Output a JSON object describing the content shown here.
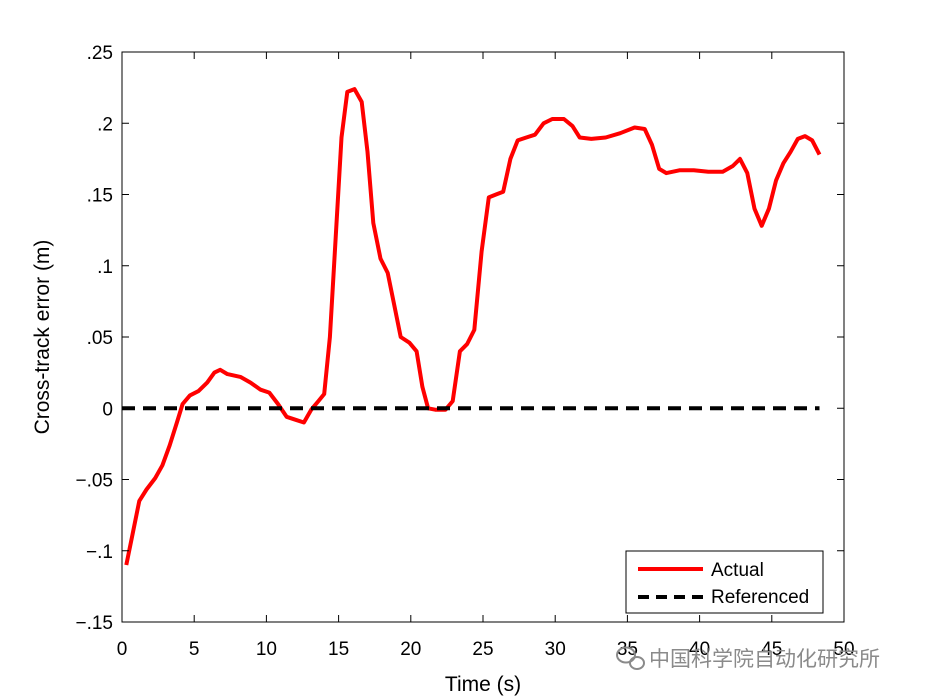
{
  "chart_data": {
    "type": "line",
    "xlabel": "Time (s)",
    "ylabel": "Cross-track error (m)",
    "xlim": [
      0,
      50
    ],
    "ylim": [
      -0.15,
      0.25
    ],
    "xticks": [
      0,
      5,
      10,
      15,
      20,
      25,
      30,
      35,
      40,
      45,
      50
    ],
    "yticks": [
      -0.15,
      -0.1,
      -0.05,
      0,
      0.05,
      0.1,
      0.15,
      0.2,
      0.25
    ],
    "grid": false,
    "legend_position": "bottom-right",
    "series": [
      {
        "name": "Actual",
        "color": "#ff0000",
        "style": "solid",
        "points": [
          [
            0.3,
            -0.11
          ],
          [
            0.7,
            -0.09
          ],
          [
            1.2,
            -0.065
          ],
          [
            1.7,
            -0.057
          ],
          [
            2.3,
            -0.049
          ],
          [
            2.8,
            -0.04
          ],
          [
            3.3,
            -0.026
          ],
          [
            3.8,
            -0.01
          ],
          [
            4.2,
            0.003
          ],
          [
            4.7,
            0.009
          ],
          [
            5.3,
            0.012
          ],
          [
            5.9,
            0.018
          ],
          [
            6.4,
            0.025
          ],
          [
            6.8,
            0.027
          ],
          [
            7.3,
            0.024
          ],
          [
            8.2,
            0.022
          ],
          [
            8.9,
            0.018
          ],
          [
            9.6,
            0.013
          ],
          [
            10.2,
            0.011
          ],
          [
            10.8,
            0.003
          ],
          [
            11.4,
            -0.006
          ],
          [
            12.0,
            -0.008
          ],
          [
            12.6,
            -0.01
          ],
          [
            13.1,
            -0.001
          ],
          [
            13.6,
            0.005
          ],
          [
            14.0,
            0.01
          ],
          [
            14.4,
            0.05
          ],
          [
            14.8,
            0.12
          ],
          [
            15.2,
            0.19
          ],
          [
            15.6,
            0.222
          ],
          [
            16.1,
            0.224
          ],
          [
            16.6,
            0.215
          ],
          [
            17.0,
            0.18
          ],
          [
            17.4,
            0.13
          ],
          [
            17.9,
            0.105
          ],
          [
            18.4,
            0.095
          ],
          [
            18.8,
            0.075
          ],
          [
            19.3,
            0.05
          ],
          [
            19.9,
            0.046
          ],
          [
            20.4,
            0.04
          ],
          [
            20.8,
            0.015
          ],
          [
            21.2,
            0.0
          ],
          [
            21.7,
            -0.001
          ],
          [
            22.4,
            -0.001
          ],
          [
            22.9,
            0.005
          ],
          [
            23.4,
            0.04
          ],
          [
            23.9,
            0.045
          ],
          [
            24.4,
            0.055
          ],
          [
            24.9,
            0.11
          ],
          [
            25.4,
            0.148
          ],
          [
            25.9,
            0.15
          ],
          [
            26.4,
            0.152
          ],
          [
            26.9,
            0.175
          ],
          [
            27.4,
            0.188
          ],
          [
            28.0,
            0.19
          ],
          [
            28.6,
            0.192
          ],
          [
            29.2,
            0.2
          ],
          [
            29.8,
            0.203
          ],
          [
            30.6,
            0.203
          ],
          [
            31.2,
            0.198
          ],
          [
            31.7,
            0.19
          ],
          [
            32.5,
            0.189
          ],
          [
            33.5,
            0.19
          ],
          [
            34.5,
            0.193
          ],
          [
            35.5,
            0.197
          ],
          [
            36.2,
            0.196
          ],
          [
            36.7,
            0.185
          ],
          [
            37.2,
            0.168
          ],
          [
            37.7,
            0.165
          ],
          [
            38.6,
            0.167
          ],
          [
            39.6,
            0.167
          ],
          [
            40.6,
            0.166
          ],
          [
            41.6,
            0.166
          ],
          [
            42.3,
            0.17
          ],
          [
            42.8,
            0.175
          ],
          [
            43.3,
            0.165
          ],
          [
            43.8,
            0.14
          ],
          [
            44.3,
            0.128
          ],
          [
            44.8,
            0.14
          ],
          [
            45.3,
            0.16
          ],
          [
            45.8,
            0.172
          ],
          [
            46.3,
            0.18
          ],
          [
            46.8,
            0.189
          ],
          [
            47.3,
            0.191
          ],
          [
            47.8,
            0.188
          ],
          [
            48.3,
            0.178
          ]
        ]
      },
      {
        "name": "Referenced",
        "color": "#000000",
        "style": "dashed",
        "points": [
          [
            0,
            0
          ],
          [
            48.3,
            0
          ]
        ]
      }
    ]
  },
  "watermark": {
    "text": "中国科学院自动化研究所",
    "icon": "wechat-icon"
  }
}
